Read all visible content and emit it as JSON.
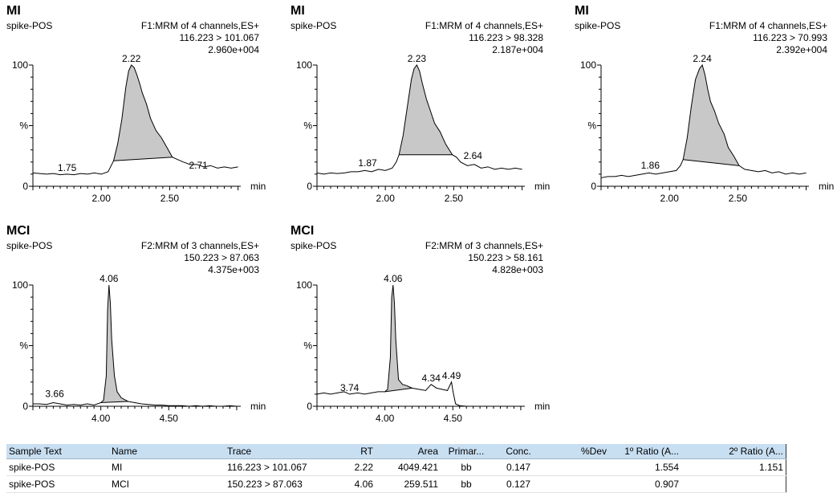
{
  "chart_data": [
    {
      "type": "line",
      "compound": "MI",
      "sample": "spike-POS",
      "function": "F1:MRM of 4 channels,ES+",
      "transition": "116.223 > 101.067",
      "intensity": "2.960e+004",
      "xlabel": "min",
      "ylabel": "%",
      "xlim": [
        1.5,
        3.02
      ],
      "ylim": [
        0,
        100
      ],
      "xticks": [
        "2.00",
        "2.50"
      ],
      "xtick_values": [
        2.0,
        2.5
      ],
      "yticks": [
        "0",
        "100"
      ],
      "peak_labels": [
        {
          "x": 1.75,
          "y": 10,
          "text": "1.75"
        },
        {
          "x": 2.22,
          "y": 100,
          "text": "2.22"
        },
        {
          "x": 2.71,
          "y": 12,
          "text": "2.71"
        }
      ],
      "shaded_region": {
        "x_start": 2.09,
        "x_end": 2.52
      },
      "x": [
        1.5,
        1.55,
        1.6,
        1.65,
        1.7,
        1.75,
        1.8,
        1.85,
        1.9,
        1.95,
        2.0,
        2.05,
        2.09,
        2.12,
        2.15,
        2.18,
        2.2,
        2.22,
        2.24,
        2.26,
        2.28,
        2.3,
        2.33,
        2.36,
        2.4,
        2.44,
        2.48,
        2.52,
        2.56,
        2.6,
        2.65,
        2.7,
        2.75,
        2.8,
        2.85,
        2.9,
        2.95,
        3.0
      ],
      "y": [
        11,
        10.5,
        10,
        10.5,
        9.5,
        10,
        9.5,
        10.5,
        10,
        11,
        10,
        12,
        21,
        35,
        55,
        82,
        95,
        100,
        98,
        92,
        85,
        77,
        68,
        56,
        46,
        40,
        32,
        24,
        22,
        20,
        18,
        18,
        16,
        17,
        15,
        16,
        15,
        16
      ]
    },
    {
      "type": "line",
      "compound": "MI",
      "sample": "spike-POS",
      "function": "F1:MRM of 4 channels,ES+",
      "transition": "116.223 > 98.328",
      "intensity": "2.187e+004",
      "xlabel": "min",
      "ylabel": "%",
      "xlim": [
        1.5,
        3.02
      ],
      "ylim": [
        0,
        100
      ],
      "xticks": [
        "2.00",
        "2.50"
      ],
      "xtick_values": [
        2.0,
        2.5
      ],
      "yticks": [
        "0",
        "100"
      ],
      "peak_labels": [
        {
          "x": 1.87,
          "y": 14,
          "text": "1.87"
        },
        {
          "x": 2.23,
          "y": 100,
          "text": "2.23"
        },
        {
          "x": 2.64,
          "y": 20,
          "text": "2.64"
        }
      ],
      "shaded_region": {
        "x_start": 2.1,
        "x_end": 2.49
      },
      "x": [
        1.5,
        1.55,
        1.6,
        1.65,
        1.7,
        1.75,
        1.8,
        1.85,
        1.9,
        1.95,
        2.0,
        2.05,
        2.08,
        2.1,
        2.13,
        2.16,
        2.19,
        2.21,
        2.23,
        2.25,
        2.27,
        2.3,
        2.33,
        2.36,
        2.4,
        2.44,
        2.49,
        2.52,
        2.55,
        2.6,
        2.65,
        2.7,
        2.75,
        2.8,
        2.85,
        2.9,
        2.95,
        3.0
      ],
      "y": [
        11,
        10,
        11,
        10.5,
        11,
        12,
        12,
        13,
        12,
        14,
        13,
        15,
        20,
        26,
        42,
        65,
        88,
        97,
        100,
        95,
        85,
        72,
        62,
        52,
        45,
        35,
        26,
        24,
        20,
        17,
        18,
        15,
        16,
        14,
        15,
        14,
        15,
        14
      ]
    },
    {
      "type": "line",
      "compound": "MI",
      "sample": "spike-POS",
      "function": "F1:MRM of 4 channels,ES+",
      "transition": "116.223 > 70.993",
      "intensity": "2.392e+004",
      "xlabel": "min",
      "ylabel": "%",
      "xlim": [
        1.5,
        3.02
      ],
      "ylim": [
        0,
        100
      ],
      "xticks": [
        "2.00",
        "2.50"
      ],
      "xtick_values": [
        2.0,
        2.5
      ],
      "yticks": [
        "0",
        "100"
      ],
      "peak_labels": [
        {
          "x": 1.86,
          "y": 12,
          "text": "1.86"
        },
        {
          "x": 2.24,
          "y": 100,
          "text": "2.24"
        }
      ],
      "shaded_region": {
        "x_start": 2.1,
        "x_end": 2.51
      },
      "x": [
        1.5,
        1.55,
        1.6,
        1.65,
        1.7,
        1.75,
        1.8,
        1.85,
        1.9,
        1.95,
        2.0,
        2.05,
        2.08,
        2.1,
        2.13,
        2.16,
        2.19,
        2.22,
        2.24,
        2.26,
        2.28,
        2.3,
        2.33,
        2.36,
        2.4,
        2.43,
        2.47,
        2.51,
        2.55,
        2.6,
        2.65,
        2.7,
        2.75,
        2.8,
        2.85,
        2.9,
        2.95,
        3.0
      ],
      "y": [
        7,
        8,
        8,
        9,
        8,
        9,
        10,
        11,
        10,
        11,
        12,
        13,
        17,
        22,
        40,
        66,
        88,
        97,
        100,
        92,
        80,
        70,
        62,
        52,
        43,
        32,
        25,
        17,
        14,
        13,
        12,
        13,
        11,
        12,
        10,
        11,
        10,
        11
      ]
    },
    {
      "type": "line",
      "compound": "MCI",
      "sample": "spike-POS",
      "function": "F2:MRM of 3 channels,ES+",
      "transition": "150.223 > 87.063",
      "intensity": "4.375e+003",
      "xlabel": "min",
      "ylabel": "%",
      "xlim": [
        3.5,
        5.03
      ],
      "ylim": [
        0,
        100
      ],
      "xticks": [
        "4.00",
        "4.50"
      ],
      "xtick_values": [
        4.0,
        4.5
      ],
      "yticks": [
        "0",
        "100"
      ],
      "peak_labels": [
        {
          "x": 3.66,
          "y": 5,
          "text": "3.66"
        },
        {
          "x": 4.06,
          "y": 100,
          "text": "4.06"
        }
      ],
      "shaded_region": {
        "x_start": 4.0,
        "x_end": 4.2
      },
      "x": [
        3.5,
        3.55,
        3.6,
        3.65,
        3.7,
        3.75,
        3.8,
        3.85,
        3.9,
        3.95,
        4.0,
        4.02,
        4.04,
        4.05,
        4.06,
        4.07,
        4.08,
        4.1,
        4.12,
        4.15,
        4.2,
        4.25,
        4.3,
        4.35,
        4.4,
        4.45,
        4.5,
        4.55,
        4.6,
        4.65,
        4.7,
        4.75,
        4.8,
        4.85,
        4.9,
        4.95,
        5.0
      ],
      "y": [
        2,
        2,
        1.5,
        3,
        2,
        1,
        1.5,
        1,
        2,
        1,
        3,
        5,
        25,
        80,
        100,
        85,
        55,
        25,
        12,
        7,
        4,
        3,
        2,
        1.5,
        1,
        1,
        0.5,
        0.5,
        0.5,
        0,
        0.5,
        0,
        0.5,
        0,
        0,
        0.5,
        0
      ]
    },
    {
      "type": "line",
      "compound": "MCI",
      "sample": "spike-POS",
      "function": "F2:MRM of 3 channels,ES+",
      "transition": "150.223 > 58.161",
      "intensity": "4.828e+003",
      "xlabel": "min",
      "ylabel": "%",
      "xlim": [
        3.5,
        5.03
      ],
      "ylim": [
        0,
        100
      ],
      "xticks": [
        "4.00",
        "4.50"
      ],
      "xtick_values": [
        4.0,
        4.5
      ],
      "yticks": [
        "0",
        "100"
      ],
      "peak_labels": [
        {
          "x": 3.74,
          "y": 10,
          "text": "3.74"
        },
        {
          "x": 4.06,
          "y": 100,
          "text": "4.06"
        },
        {
          "x": 4.34,
          "y": 18,
          "text": "4.34"
        },
        {
          "x": 4.49,
          "y": 20,
          "text": "4.49"
        }
      ],
      "shaded_region": {
        "x_start": 4.0,
        "x_end": 4.2
      },
      "x": [
        3.5,
        3.55,
        3.6,
        3.65,
        3.7,
        3.74,
        3.8,
        3.85,
        3.9,
        3.95,
        4.0,
        4.02,
        4.04,
        4.05,
        4.06,
        4.07,
        4.08,
        4.1,
        4.13,
        4.16,
        4.2,
        4.25,
        4.3,
        4.34,
        4.38,
        4.42,
        4.46,
        4.49,
        4.5,
        4.52,
        4.55,
        4.6,
        4.7,
        4.8,
        4.9,
        5.0
      ],
      "y": [
        10,
        11,
        10,
        11,
        12,
        10,
        11,
        10,
        11,
        12,
        12,
        14,
        40,
        90,
        100,
        85,
        55,
        22,
        18,
        17,
        15,
        14,
        13,
        18,
        15,
        14,
        13,
        20,
        13,
        2,
        0.5,
        0,
        0,
        0,
        0,
        0
      ]
    }
  ],
  "results_table": {
    "headers": [
      "Sample Text",
      "Name",
      "Trace",
      "RT",
      "Area",
      "Primar...",
      "Conc.",
      "%Dev",
      "1º Ratio (A...",
      "2º Ratio (A..."
    ],
    "rows": [
      [
        "spike-POS",
        "MI",
        "116.223 > 101.067",
        "2.22",
        "4049.421",
        "bb",
        "0.147",
        "",
        "1.554",
        "1.151"
      ],
      [
        "spike-POS",
        "MCI",
        "150.223 > 87.063",
        "4.06",
        "259.511",
        "bb",
        "0.127",
        "",
        "0.907",
        ""
      ]
    ]
  },
  "colors": {
    "trace": "#000000",
    "peak_fill": "#c8c8c8",
    "table_header": "#c8dff2"
  }
}
